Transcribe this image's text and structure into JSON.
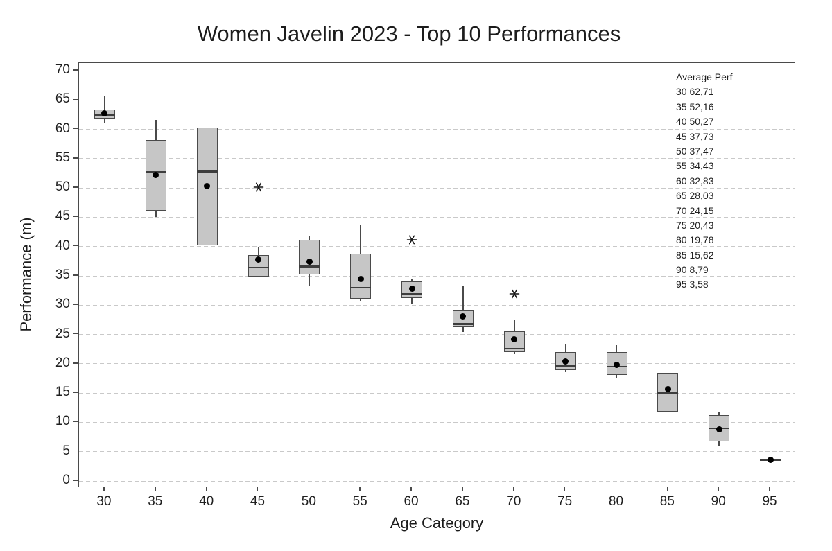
{
  "title": "Women Javelin 2023 - Top 10 Performances",
  "chart_data": {
    "type": "boxplot",
    "title": "Women Javelin 2023 - Top 10 Performances",
    "xlabel": "Age Category",
    "ylabel": "Performance (m)",
    "ylim": [
      0,
      70
    ],
    "ytick_step": 5,
    "grid": "horizontal-dashed",
    "legend_position": "top-right-inside",
    "categories": [
      "30",
      "35",
      "40",
      "45",
      "50",
      "55",
      "60",
      "65",
      "70",
      "75",
      "80",
      "85",
      "90",
      "95"
    ],
    "boxes": [
      {
        "category": "30",
        "whisker_low": 61.1,
        "q1": 61.8,
        "median": 62.5,
        "q3": 63.4,
        "whisker_high": 65.7,
        "mean": 62.71,
        "outliers": []
      },
      {
        "category": "35",
        "whisker_low": 45.0,
        "q1": 46.1,
        "median": 52.7,
        "q3": 58.2,
        "whisker_high": 61.6,
        "mean": 52.16,
        "outliers": []
      },
      {
        "category": "40",
        "whisker_low": 39.3,
        "q1": 40.2,
        "median": 52.8,
        "q3": 60.3,
        "whisker_high": 62.0,
        "mean": 50.27,
        "outliers": []
      },
      {
        "category": "45",
        "whisker_low": 34.9,
        "q1": 34.9,
        "median": 36.4,
        "q3": 38.5,
        "whisker_high": 39.8,
        "mean": 37.73,
        "outliers": [
          50.1
        ]
      },
      {
        "category": "50",
        "whisker_low": 33.3,
        "q1": 35.2,
        "median": 36.6,
        "q3": 41.2,
        "whisker_high": 41.8,
        "mean": 37.47,
        "outliers": []
      },
      {
        "category": "55",
        "whisker_low": 30.7,
        "q1": 31.1,
        "median": 33.0,
        "q3": 38.8,
        "whisker_high": 43.6,
        "mean": 34.43,
        "outliers": []
      },
      {
        "category": "60",
        "whisker_low": 30.2,
        "q1": 31.2,
        "median": 31.9,
        "q3": 34.1,
        "whisker_high": 34.4,
        "mean": 32.83,
        "outliers": [
          41.2
        ]
      },
      {
        "category": "65",
        "whisker_low": 25.4,
        "q1": 26.3,
        "median": 26.8,
        "q3": 29.2,
        "whisker_high": 33.3,
        "mean": 28.03,
        "outliers": []
      },
      {
        "category": "70",
        "whisker_low": 21.6,
        "q1": 22.0,
        "median": 22.6,
        "q3": 25.6,
        "whisker_high": 27.6,
        "mean": 24.15,
        "outliers": [
          31.9
        ]
      },
      {
        "category": "75",
        "whisker_low": 18.6,
        "q1": 18.9,
        "median": 19.6,
        "q3": 22.0,
        "whisker_high": 23.4,
        "mean": 20.43,
        "outliers": []
      },
      {
        "category": "80",
        "whisker_low": 17.6,
        "q1": 18.1,
        "median": 19.5,
        "q3": 22.0,
        "whisker_high": 23.2,
        "mean": 19.78,
        "outliers": []
      },
      {
        "category": "85",
        "whisker_low": 11.6,
        "q1": 11.8,
        "median": 15.1,
        "q3": 18.5,
        "whisker_high": 24.2,
        "mean": 15.62,
        "outliers": []
      },
      {
        "category": "90",
        "whisker_low": 5.9,
        "q1": 6.7,
        "median": 9.0,
        "q3": 11.2,
        "whisker_high": 11.7,
        "mean": 8.79,
        "outliers": []
      },
      {
        "category": "95",
        "whisker_low": 3.3,
        "q1": 3.4,
        "median": 3.6,
        "q3": 3.8,
        "whisker_high": 3.9,
        "mean": 3.58,
        "outliers": []
      }
    ],
    "annotation": {
      "header": "Average Perf",
      "rows": [
        [
          "30",
          "62,71"
        ],
        [
          "35",
          "52,16"
        ],
        [
          "40",
          "50,27"
        ],
        [
          "45",
          "37,73"
        ],
        [
          "50",
          "37,47"
        ],
        [
          "55",
          "34,43"
        ],
        [
          "60",
          "32,83"
        ],
        [
          "65",
          "28,03"
        ],
        [
          "70",
          "24,15"
        ],
        [
          "75",
          "20,43"
        ],
        [
          "80",
          "19,78"
        ],
        [
          "85",
          "15,62"
        ],
        [
          "90",
          "8,79"
        ],
        [
          "95",
          "3,58"
        ]
      ]
    },
    "colors": {
      "box_fill": "#c6c6c6",
      "box_border": "#4a4a4a",
      "median": "#3d3d3d",
      "whisker": "#4a4a4a",
      "mean_dot": "#000000",
      "gridline": "#c9c9c9",
      "axis": "#4a4a4a",
      "text": "#1f1f1f"
    }
  }
}
